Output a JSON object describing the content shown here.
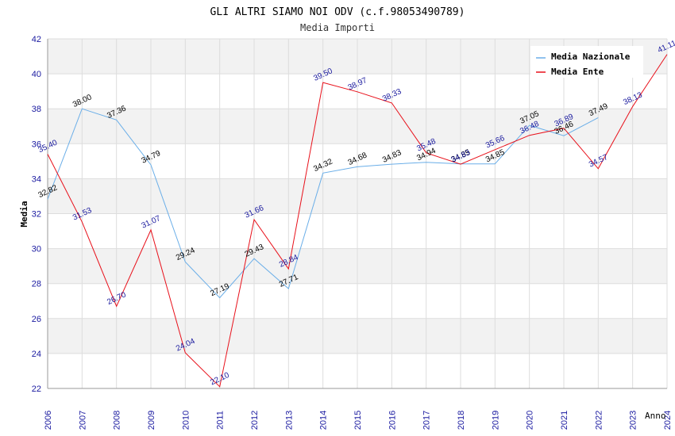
{
  "chart_data": {
    "type": "line",
    "title": "GLI ALTRI SIAMO NOI ODV (c.f.98053490789)",
    "subtitle": "Media Importi",
    "xlabel": "Anno",
    "ylabel": "Media",
    "ylim": [
      22,
      42
    ],
    "yticks": [
      "22",
      "24",
      "26",
      "28",
      "30",
      "32",
      "34",
      "36",
      "38",
      "40",
      "42"
    ],
    "categories": [
      "2006",
      "2007",
      "2008",
      "2009",
      "2010",
      "2011",
      "2012",
      "2013",
      "2014",
      "2015",
      "2016",
      "2017",
      "2018",
      "2019",
      "2020",
      "2021",
      "2022",
      "2023",
      "2024"
    ],
    "series": [
      {
        "name": "Media Nazionale",
        "color": "#6aaee8",
        "label_color": "#000000",
        "values": [
          32.82,
          38.0,
          37.36,
          34.79,
          29.24,
          27.19,
          29.43,
          27.71,
          34.32,
          34.68,
          34.83,
          34.94,
          34.85,
          34.85,
          37.05,
          36.46,
          37.49,
          null,
          null
        ],
        "labels": [
          "32.82",
          "38.00",
          "37.36",
          "34.79",
          "29.24",
          "27.19",
          "29.43",
          "27.71",
          "34.32",
          "34.68",
          "34.83",
          "34.94",
          "34.85",
          "34.85",
          "37.05",
          "36.46",
          "37.49",
          "",
          ""
        ]
      },
      {
        "name": "Media Ente",
        "color": "#e8101a",
        "label_color": "#1a1a9e",
        "values": [
          35.4,
          31.53,
          26.7,
          31.07,
          24.04,
          22.1,
          31.66,
          28.84,
          39.5,
          38.97,
          38.33,
          35.48,
          34.83,
          35.66,
          36.48,
          36.89,
          34.57,
          38.13,
          41.11
        ],
        "labels": [
          "35.40",
          "31.53",
          "26.70",
          "31.07",
          "24.04",
          "22.10",
          "31.66",
          "28.84",
          "39.50",
          "38.97",
          "38.33",
          "35.48",
          "34.83",
          "35.66",
          "36.48",
          "36.89",
          "34.57",
          "38.13",
          "41.11"
        ]
      }
    ],
    "legend_position": "top-right",
    "grid": true,
    "band_color": "#f2f2f2",
    "grid_color": "#dddddd",
    "tick_color": "#1a1aa0"
  }
}
